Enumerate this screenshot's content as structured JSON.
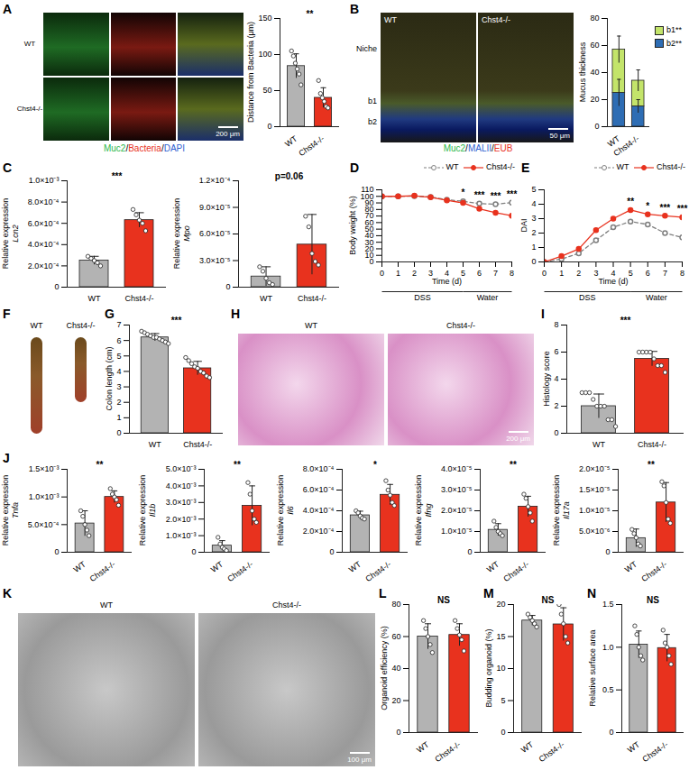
{
  "image_panels": [
    {
      "panel": "A",
      "style": "grid",
      "rows": [
        "WT",
        "Chst4-/-"
      ],
      "columns": 3,
      "scale_bar": "200 μm",
      "caption": [
        {
          "text": "Muc2",
          "color": "#2db84a"
        },
        {
          "text": "/"
        },
        {
          "text": "Bacteria",
          "color": "#e8321e"
        },
        {
          "text": "/"
        },
        {
          "text": "DAPI",
          "color": "#2f5fd0"
        }
      ]
    },
    {
      "panel": "B",
      "style": "layers",
      "labels": [
        "WT",
        "Chst4-/-"
      ],
      "layers": [
        "Niche",
        "b1",
        "b2"
      ],
      "scale_bar": "50 μm",
      "caption": [
        {
          "text": "Muc2",
          "color": "#2db84a"
        },
        {
          "text": "/"
        },
        {
          "text": "MALII",
          "color": "#2f5fd0"
        },
        {
          "text": "/"
        },
        {
          "text": "EUB",
          "color": "#e8321e"
        }
      ]
    },
    {
      "panel": "F",
      "style": "photo",
      "labels": [
        "WT",
        "Chst4-/-"
      ]
    },
    {
      "panel": "H",
      "style": "histology",
      "labels": [
        "WT",
        "Chst4-/-"
      ],
      "scale_bar": "200 μm"
    },
    {
      "panel": "K",
      "style": "brightfield",
      "labels": [
        "WT",
        "Chst4-/-"
      ],
      "scale_bar": "100 μm"
    }
  ],
  "chart_data": [
    {
      "panel": "A",
      "type": "bar",
      "ylabel": "Distance from Bacteria (μm)",
      "categories": [
        "WT",
        "Chst4-/-"
      ],
      "values": [
        84,
        40
      ],
      "errors": [
        17,
        14
      ],
      "points": [
        [
          105,
          98,
          88,
          80,
          73,
          58
        ],
        [
          64,
          46,
          40,
          35,
          28,
          26
        ]
      ],
      "colors": [
        "#b3b3b3",
        "#e8321e"
      ],
      "ylim": [
        0,
        150
      ],
      "yticks": [
        0,
        50,
        100,
        150
      ],
      "annotation": "**"
    },
    {
      "panel": "B",
      "type": "bar",
      "stacked": true,
      "ylabel": "Mucus thickness",
      "categories": [
        "WT",
        "Chst4-/-"
      ],
      "series": [
        {
          "name": "b2",
          "significance": "**",
          "color": "#2e6db4",
          "values": [
            25,
            15
          ],
          "errors": [
            10,
            5
          ]
        },
        {
          "name": "b1",
          "significance": "**",
          "color": "#c3e46a",
          "values": [
            32,
            19
          ],
          "errors": [
            10,
            8
          ]
        }
      ],
      "ylim": [
        0,
        80
      ],
      "yticks": [
        0,
        20,
        40,
        60,
        80
      ],
      "legend": "right"
    },
    {
      "panel": "C",
      "type": "bar",
      "ylabel": [
        "Relative expression",
        "Lcn2"
      ],
      "categories": [
        "WT",
        "Chst4-/-"
      ],
      "values": [
        0.00025,
        0.00063
      ],
      "errors": [
        4e-05,
        7e-05
      ],
      "points": [
        [
          0.00029,
          0.00027,
          0.00025,
          0.00023,
          0.0002
        ],
        [
          0.00073,
          0.00068,
          0.00063,
          0.0006,
          0.00053
        ]
      ],
      "colors": [
        "#b3b3b3",
        "#e8321e"
      ],
      "ylim": [
        0,
        0.001
      ],
      "yticks": [
        0,
        {
          "value": 0.0002,
          "label": "2.0×10⁻⁴"
        },
        {
          "value": 0.0004,
          "label": "4.0×10⁻⁴"
        },
        {
          "value": 0.0006,
          "label": "6.0×10⁻⁴"
        },
        {
          "value": 0.0008,
          "label": "8.0×10⁻⁴"
        },
        {
          "value": 0.001,
          "label": "1.0×10⁻³"
        }
      ],
      "annotation": "***"
    },
    {
      "panel": "C",
      "type": "bar",
      "ylabel": [
        "Relative expression",
        "Mpo"
      ],
      "categories": [
        "WT",
        "Chst4-/-"
      ],
      "values": [
        1.2e-05,
        4.8e-05
      ],
      "errors": [
        1.1e-05,
        3.4e-05
      ],
      "points": [
        [
          2.3e-05,
          1.8e-05,
          1e-05,
          5e-06,
          3e-06
        ],
        [
          8e-05,
          6.8e-05,
          3.8e-05,
          2.9e-05,
          2.5e-05
        ]
      ],
      "colors": [
        "#b3b3b3",
        "#e8321e"
      ],
      "ylim": [
        0,
        0.00012
      ],
      "yticks": [
        0,
        {
          "value": 3e-05,
          "label": "3.0×10⁻⁵"
        },
        {
          "value": 6e-05,
          "label": "6.0×10⁻⁵"
        },
        {
          "value": 9e-05,
          "label": "9.0×10⁻⁵"
        },
        {
          "value": 0.00012,
          "label": "1.2×10⁻⁴"
        }
      ],
      "annotation": "p=0.06"
    },
    {
      "panel": "D",
      "type": "line",
      "ylabel": "Body weight (%)",
      "xlabel": "Time (d)",
      "x": [
        0,
        1,
        2,
        3,
        4,
        5,
        6,
        7,
        8
      ],
      "series": [
        {
          "name": "WT",
          "color": "#7f7f7f",
          "line_style": "dashed",
          "marker": "circle_open",
          "values": [
            100,
            100,
            100.5,
            99,
            95,
            92.5,
            89,
            88,
            90.5
          ]
        },
        {
          "name": "Chst4-/-",
          "color": "#e8321e",
          "line_style": "solid",
          "marker": "circle",
          "values": [
            100,
            100,
            101,
            98.5,
            94,
            90,
            81,
            75,
            70.5
          ]
        }
      ],
      "xlim": [
        0,
        8
      ],
      "xticks": [
        0,
        1,
        2,
        3,
        4,
        5,
        6,
        7,
        8
      ],
      "ylim": [
        0,
        110
      ],
      "yticks": [
        0,
        10,
        20,
        30,
        40,
        50,
        60,
        70,
        80,
        90,
        100,
        110
      ],
      "annotations": [
        {
          "x": 5,
          "text": "*"
        },
        {
          "x": 6,
          "text": "***"
        },
        {
          "x": 7,
          "text": "***"
        },
        {
          "x": 8,
          "text": "***"
        }
      ],
      "phases": [
        {
          "label": "DSS",
          "start": 0,
          "end": 5
        },
        {
          "label": "Water",
          "start": 5,
          "end": 8
        }
      ],
      "legend": "top"
    },
    {
      "panel": "E",
      "type": "line",
      "ylabel": "DAI",
      "xlabel": "Time (d)",
      "x": [
        0,
        1,
        2,
        3,
        4,
        5,
        6,
        7,
        8
      ],
      "series": [
        {
          "name": "WT",
          "color": "#7f7f7f",
          "line_style": "dashed",
          "marker": "circle_open",
          "values": [
            0,
            0.2,
            0.6,
            1.5,
            2.4,
            2.8,
            2.6,
            2.0,
            1.7
          ]
        },
        {
          "name": "Chst4-/-",
          "color": "#e8321e",
          "line_style": "solid",
          "marker": "circle",
          "values": [
            0,
            0.4,
            0.9,
            2.2,
            3.0,
            3.6,
            3.3,
            3.2,
            3.1
          ]
        }
      ],
      "xlim": [
        0,
        8
      ],
      "xticks": [
        0,
        1,
        2,
        3,
        4,
        5,
        6,
        7,
        8
      ],
      "ylim": [
        0,
        5
      ],
      "yticks": [
        0,
        1,
        2,
        3,
        4,
        5
      ],
      "annotations": [
        {
          "x": 5,
          "text": "**"
        },
        {
          "x": 6,
          "text": "*"
        },
        {
          "x": 7,
          "text": "***"
        },
        {
          "x": 8,
          "text": "***"
        }
      ],
      "phases": [
        {
          "label": "DSS",
          "start": 0,
          "end": 5
        },
        {
          "label": "Water",
          "start": 5,
          "end": 8
        }
      ],
      "legend": "top"
    },
    {
      "panel": "G",
      "type": "bar",
      "ylabel": "Colon length (cm)",
      "categories": [
        "WT",
        "Chst4-/-"
      ],
      "values": [
        6.2,
        4.2
      ],
      "errors": [
        0.25,
        0.45
      ],
      "points": [
        [
          6.6,
          6.5,
          6.4,
          6.3,
          6.2,
          6.2,
          6.1,
          6.0,
          5.9,
          5.8
        ],
        [
          4.9,
          4.7,
          4.5,
          4.3,
          4.2,
          4.0,
          3.9,
          3.7,
          3.6
        ]
      ],
      "colors": [
        "#b3b3b3",
        "#e8321e"
      ],
      "ylim": [
        0,
        7
      ],
      "yticks": [
        0,
        1,
        2,
        3,
        4,
        5,
        6,
        7
      ],
      "annotation": "***"
    },
    {
      "panel": "I",
      "type": "bar",
      "ylabel": "Histology score",
      "categories": [
        "WT",
        "Chst4-/-"
      ],
      "values": [
        2.0,
        5.5
      ],
      "errors": [
        0.9,
        0.55
      ],
      "points": [
        [
          3,
          3,
          3,
          2.5,
          2,
          2,
          2,
          1,
          1,
          0.5
        ],
        [
          6,
          6,
          6,
          6,
          5.5,
          5,
          5,
          4.5
        ]
      ],
      "colors": [
        "#b3b3b3",
        "#e8321e"
      ],
      "ylim": [
        0,
        8
      ],
      "yticks": [
        0,
        2,
        4,
        6,
        8
      ],
      "annotation": "***"
    },
    {
      "panel": "J",
      "type": "bar",
      "ylabel": [
        "Relative expression",
        "Tnfa"
      ],
      "categories": [
        "WT",
        "Chst4-/-"
      ],
      "values": [
        0.00052,
        0.001
      ],
      "errors": [
        0.00023,
        0.00011
      ],
      "points": [
        [
          0.00075,
          0.00065,
          0.0005,
          0.0004,
          0.0003
        ],
        [
          0.00115,
          0.00105,
          0.001,
          0.00095,
          0.00085
        ]
      ],
      "colors": [
        "#b3b3b3",
        "#e8321e"
      ],
      "ylim": [
        0,
        0.0015
      ],
      "yticks": [
        0,
        {
          "value": 0.0005,
          "label": "5.0×10⁻⁴"
        },
        {
          "value": 0.001,
          "label": "1.0×10⁻³"
        },
        {
          "value": 0.0015,
          "label": "1.5×10⁻³"
        }
      ],
      "annotation": "**"
    },
    {
      "panel": "J",
      "type": "bar",
      "ylabel": [
        "Relative expression",
        "Il1b"
      ],
      "categories": [
        "WT",
        "Chst4-/-"
      ],
      "values": [
        0.0004,
        0.0028
      ],
      "errors": [
        0.0003,
        0.0012
      ],
      "points": [
        [
          0.0009,
          0.0005,
          0.0003,
          0.0002,
          0.0001
        ],
        [
          0.0042,
          0.0035,
          0.0025,
          0.002,
          0.0018
        ]
      ],
      "colors": [
        "#b3b3b3",
        "#e8321e"
      ],
      "ylim": [
        0,
        0.005
      ],
      "yticks": [
        0,
        {
          "value": 0.001,
          "label": "1.0×10⁻³"
        },
        {
          "value": 0.002,
          "label": "2.0×10⁻³"
        },
        {
          "value": 0.003,
          "label": "3.0×10⁻³"
        },
        {
          "value": 0.004,
          "label": "4.0×10⁻³"
        },
        {
          "value": 0.005,
          "label": "5.0×10⁻³"
        }
      ],
      "annotation": "**"
    },
    {
      "panel": "J",
      "type": "bar",
      "ylabel": [
        "Relative expression",
        "Il6"
      ],
      "categories": [
        "WT",
        "Chst4-/-"
      ],
      "values": [
        0.000356,
        0.000554
      ],
      "errors": [
        4e-05,
        0.0001
      ],
      "points": [
        [
          0.0004,
          0.00038,
          0.00035,
          0.00033,
          0.00032
        ],
        [
          0.00069,
          0.0006,
          0.00055,
          0.00048,
          0.00045
        ]
      ],
      "colors": [
        "#b3b3b3",
        "#e8321e"
      ],
      "ylim": [
        0,
        0.0008
      ],
      "yticks": [
        0,
        {
          "value": 0.0002,
          "label": "2.0×10⁻⁴"
        },
        {
          "value": 0.0004,
          "label": "4.0×10⁻⁴"
        },
        {
          "value": 0.0006,
          "label": "6.0×10⁻⁴"
        },
        {
          "value": 0.0008,
          "label": "8.0×10⁻⁴"
        }
      ],
      "annotation": "*"
    },
    {
      "panel": "J",
      "type": "bar",
      "ylabel": [
        "Relative expression",
        "Ifng"
      ],
      "categories": [
        "WT",
        "Chst4-/-"
      ],
      "values": [
        1.08e-05,
        2.2e-05
      ],
      "errors": [
        3e-06,
        5e-06
      ],
      "points": [
        [
          1.5e-05,
          1.2e-05,
          1e-05,
          9e-06,
          8e-06
        ],
        [
          2.8e-05,
          2.6e-05,
          2.2e-05,
          1.9e-05,
          1.5e-05
        ]
      ],
      "colors": [
        "#b3b3b3",
        "#e8321e"
      ],
      "ylim": [
        0,
        4e-05
      ],
      "yticks": [
        0,
        {
          "value": 1e-05,
          "label": "1.0×10⁻⁵"
        },
        {
          "value": 2e-05,
          "label": "2.0×10⁻⁵"
        },
        {
          "value": 3e-05,
          "label": "3.0×10⁻⁵"
        },
        {
          "value": 4e-05,
          "label": "4.0×10⁻⁵"
        }
      ],
      "annotation": "**"
    },
    {
      "panel": "J",
      "type": "bar",
      "ylabel": [
        "Relative expression",
        "Il17a"
      ],
      "categories": [
        "WT",
        "Chst4-/-"
      ],
      "values": [
        3.4e-06,
        1.2e-05
      ],
      "errors": [
        2.2e-06,
        4.8e-06
      ],
      "points": [
        [
          5.5e-06,
          4.5e-06,
          3.5e-06,
          2e-06,
          1.5e-06
        ],
        [
          1.7e-05,
          1.6e-05,
          1.2e-05,
          8e-06,
          7e-06
        ]
      ],
      "colors": [
        "#b3b3b3",
        "#e8321e"
      ],
      "ylim": [
        0,
        2e-05
      ],
      "yticks": [
        0,
        {
          "value": 5e-06,
          "label": "5.0×10⁻⁶"
        },
        {
          "value": 1e-05,
          "label": "1.0×10⁻⁵"
        },
        {
          "value": 1.5e-05,
          "label": "1.5×10⁻⁵"
        },
        {
          "value": 2e-05,
          "label": "2.0×10⁻⁵"
        }
      ],
      "annotation": "**"
    },
    {
      "panel": "L",
      "type": "bar",
      "ylabel": "Organoid efficiency (%)",
      "categories": [
        "WT",
        "Chst4-/-"
      ],
      "values": [
        60,
        61
      ],
      "errors": [
        8,
        7
      ],
      "points": [
        [
          70,
          65,
          60,
          55,
          50
        ],
        [
          70,
          65,
          61,
          58,
          51
        ]
      ],
      "colors": [
        "#b3b3b3",
        "#e8321e"
      ],
      "ylim": [
        0,
        80
      ],
      "yticks": [
        0,
        20,
        40,
        60,
        80
      ],
      "annotation": "NS"
    },
    {
      "panel": "M",
      "type": "bar",
      "ylabel": "Budding organoid (%)",
      "categories": [
        "WT",
        "Chst4-/-"
      ],
      "values": [
        17.5,
        16.9
      ],
      "errors": [
        0.8,
        2.6
      ],
      "points": [
        [
          18.5,
          18,
          17.5,
          17,
          16.5
        ],
        [
          20,
          18.5,
          17,
          15,
          14
        ]
      ],
      "colors": [
        "#b3b3b3",
        "#e8321e"
      ],
      "ylim": [
        0,
        20
      ],
      "yticks": [
        0,
        5,
        10,
        15,
        20
      ],
      "annotation": "NS"
    },
    {
      "panel": "N",
      "type": "bar",
      "ylabel": "Relative surface area",
      "categories": [
        "WT",
        "Chst4-/-"
      ],
      "values": [
        1.03,
        0.99
      ],
      "errors": [
        0.16,
        0.16
      ],
      "points": [
        [
          1.25,
          1.15,
          1.0,
          0.9,
          0.85
        ],
        [
          1.2,
          1.05,
          1.0,
          0.9,
          0.8
        ]
      ],
      "colors": [
        "#b3b3b3",
        "#e8321e"
      ],
      "ylim": [
        0,
        1.5
      ],
      "yticks": [
        0,
        0.5,
        {
          "value": 1,
          "label": "1.0"
        },
        1.5
      ],
      "annotation": "NS"
    }
  ]
}
